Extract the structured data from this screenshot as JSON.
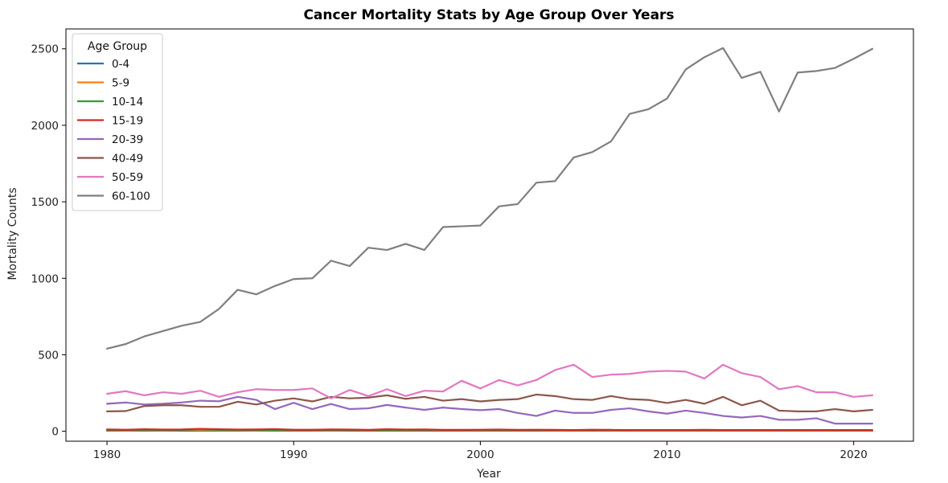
{
  "chart_data": {
    "type": "line",
    "title": "Cancer Mortality Stats by Age Group Over Years",
    "xlabel": "Year",
    "ylabel": "Mortality Counts",
    "xlim": [
      1977.8,
      2023.2
    ],
    "ylim": [
      -65,
      2630
    ],
    "xticks": [
      1980,
      1990,
      2000,
      2010,
      2020
    ],
    "yticks": [
      0,
      500,
      1000,
      1500,
      2000,
      2500
    ],
    "grid": false,
    "legend": {
      "title": "Age Group",
      "position": "top-left"
    },
    "x": [
      1980,
      1981,
      1982,
      1983,
      1984,
      1985,
      1986,
      1987,
      1988,
      1989,
      1990,
      1991,
      1992,
      1993,
      1994,
      1995,
      1996,
      1997,
      1998,
      1999,
      2000,
      2001,
      2002,
      2003,
      2004,
      2005,
      2006,
      2007,
      2008,
      2009,
      2010,
      2011,
      2012,
      2013,
      2014,
      2015,
      2016,
      2017,
      2018,
      2019,
      2020,
      2021
    ],
    "series": [
      {
        "name": "0-4",
        "color": "#1f77b4",
        "values": [
          3,
          4,
          3,
          4,
          3,
          4,
          3,
          3,
          4,
          3,
          3,
          3,
          4,
          3,
          3,
          3,
          3,
          3,
          3,
          3,
          3,
          3,
          3,
          3,
          3,
          3,
          3,
          3,
          3,
          3,
          3,
          3,
          3,
          3,
          3,
          3,
          3,
          3,
          3,
          3,
          3,
          3
        ]
      },
      {
        "name": "5-9",
        "color": "#ff7f0e",
        "values": [
          6,
          5,
          7,
          6,
          8,
          10,
          7,
          6,
          6,
          7,
          6,
          5,
          6,
          6,
          5,
          6,
          5,
          6,
          5,
          5,
          5,
          5,
          5,
          5,
          4,
          4,
          5,
          4,
          4,
          4,
          4,
          4,
          4,
          4,
          4,
          4,
          4,
          4,
          4,
          4,
          4,
          4
        ]
      },
      {
        "name": "10-14",
        "color": "#2ca02c",
        "values": [
          8,
          7,
          9,
          8,
          9,
          14,
          10,
          8,
          8,
          9,
          7,
          7,
          8,
          7,
          6,
          7,
          6,
          7,
          6,
          6,
          6,
          6,
          6,
          5,
          5,
          5,
          5,
          5,
          5,
          5,
          5,
          5,
          5,
          5,
          5,
          5,
          5,
          5,
          5,
          5,
          5,
          5
        ]
      },
      {
        "name": "15-19",
        "color": "#d62728",
        "values": [
          12,
          10,
          13,
          11,
          12,
          16,
          13,
          11,
          12,
          14,
          10,
          10,
          12,
          11,
          9,
          13,
          11,
          12,
          9,
          9,
          10,
          11,
          9,
          10,
          9,
          8,
          10,
          9,
          8,
          8,
          8,
          8,
          9,
          8,
          8,
          8,
          8,
          8,
          8,
          8,
          8,
          8
        ]
      },
      {
        "name": "20-39",
        "color": "#9467bd",
        "values": [
          180,
          188,
          175,
          180,
          188,
          200,
          196,
          225,
          205,
          145,
          186,
          145,
          178,
          145,
          150,
          172,
          155,
          140,
          155,
          145,
          138,
          145,
          120,
          100,
          135,
          120,
          120,
          140,
          150,
          130,
          115,
          135,
          120,
          100,
          90,
          100,
          75,
          75,
          85,
          50,
          50,
          50
        ]
      },
      {
        "name": "40-49",
        "color": "#8c564b",
        "values": [
          130,
          132,
          165,
          170,
          170,
          160,
          160,
          193,
          175,
          200,
          215,
          195,
          225,
          215,
          220,
          235,
          212,
          225,
          200,
          210,
          195,
          205,
          210,
          240,
          230,
          210,
          205,
          230,
          210,
          205,
          185,
          205,
          180,
          225,
          170,
          200,
          135,
          130,
          130,
          145,
          130,
          140
        ]
      },
      {
        "name": "50-59",
        "color": "#e377c2",
        "values": [
          245,
          262,
          235,
          255,
          245,
          265,
          225,
          255,
          275,
          270,
          270,
          280,
          215,
          270,
          230,
          275,
          230,
          265,
          260,
          330,
          280,
          335,
          300,
          335,
          400,
          435,
          355,
          370,
          375,
          390,
          395,
          390,
          345,
          435,
          380,
          355,
          275,
          295,
          255,
          255,
          225,
          235
        ]
      },
      {
        "name": "60-100",
        "color": "#7f7f7f",
        "values": [
          540,
          570,
          620,
          655,
          690,
          715,
          800,
          925,
          895,
          950,
          995,
          1000,
          1115,
          1080,
          1200,
          1185,
          1225,
          1185,
          1335,
          1340,
          1345,
          1470,
          1485,
          1625,
          1635,
          1790,
          1825,
          1895,
          2075,
          2105,
          2175,
          2365,
          2445,
          2505,
          2310,
          2350,
          2090,
          2345,
          2355,
          2375,
          2435,
          2500
        ]
      }
    ]
  }
}
